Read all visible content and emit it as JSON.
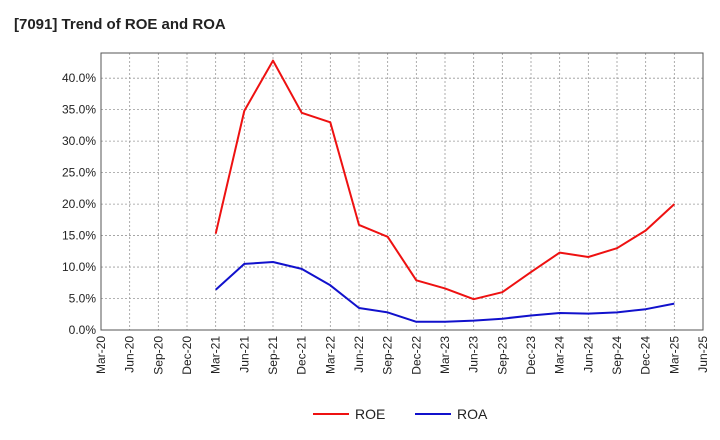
{
  "chart_data": {
    "type": "line",
    "title": "[7091]  Trend of ROE and ROA",
    "xlabel": "",
    "ylabel": "",
    "x_ticks": [
      "Mar-20",
      "Jun-20",
      "Sep-20",
      "Dec-20",
      "Mar-21",
      "Jun-21",
      "Sep-21",
      "Dec-21",
      "Mar-22",
      "Jun-22",
      "Sep-22",
      "Dec-22",
      "Mar-23",
      "Jun-23",
      "Sep-23",
      "Dec-23",
      "Mar-24",
      "Jun-24",
      "Sep-24",
      "Dec-24",
      "Mar-25",
      "Jun-25"
    ],
    "y_ticks": [
      "0.0%",
      "5.0%",
      "10.0%",
      "15.0%",
      "20.0%",
      "25.0%",
      "30.0%",
      "35.0%",
      "40.0%"
    ],
    "ylim": [
      0,
      44
    ],
    "grid": true,
    "legend_position": "bottom",
    "series": [
      {
        "name": "ROE",
        "color": "#ee1111",
        "x": [
          "Mar-21",
          "Jun-21",
          "Sep-21",
          "Dec-21",
          "Mar-22",
          "Jun-22",
          "Sep-22",
          "Dec-22",
          "Mar-23",
          "Jun-23",
          "Sep-23",
          "Dec-23",
          "Mar-24",
          "Jun-24",
          "Sep-24",
          "Dec-24",
          "Mar-25"
        ],
        "values": [
          15.3,
          34.8,
          42.8,
          34.5,
          33.0,
          16.7,
          14.8,
          7.9,
          6.6,
          4.9,
          6.0,
          9.2,
          12.3,
          11.6,
          13.0,
          15.8,
          20.0
        ]
      },
      {
        "name": "ROA",
        "color": "#1111cc",
        "x": [
          "Mar-21",
          "Jun-21",
          "Sep-21",
          "Dec-21",
          "Mar-22",
          "Jun-22",
          "Sep-22",
          "Dec-22",
          "Mar-23",
          "Jun-23",
          "Sep-23",
          "Dec-23",
          "Mar-24",
          "Jun-24",
          "Sep-24",
          "Dec-24",
          "Mar-25"
        ],
        "values": [
          6.4,
          10.5,
          10.8,
          9.7,
          7.1,
          3.5,
          2.8,
          1.3,
          1.3,
          1.5,
          1.8,
          2.3,
          2.7,
          2.6,
          2.8,
          3.3,
          4.2
        ]
      }
    ]
  }
}
